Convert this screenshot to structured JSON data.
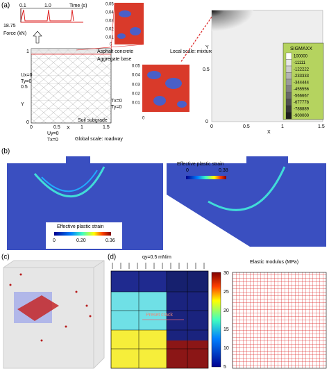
{
  "panels": {
    "a": {
      "label": "(a)",
      "time_axis": "Time (s)",
      "time_ticks": [
        "0.1",
        "1.0"
      ],
      "force_axis": "Force (kN)",
      "force_value": "18.75",
      "layers": [
        "Asphalt concrete",
        "Aggregate base",
        "Soil subgrade"
      ],
      "local_scale": "Local scale: mixture",
      "global_scale": "Global scale: roadway",
      "x_ticks": [
        "0",
        "0.5",
        "1",
        "1.5"
      ],
      "y_ticks": [
        "0",
        "0.5",
        "1"
      ],
      "x_label": "X",
      "y_label": "Y",
      "bc_left": [
        "Ux=0",
        "Ty=0"
      ],
      "bc_right": [
        "Tx=0",
        "Ty=0"
      ],
      "bc_bottom": [
        "Uy=0",
        "Tx=0"
      ],
      "inset_top_ticks": [
        "0.05",
        "0.04",
        "0.03",
        "0.02",
        "0.01",
        "0"
      ],
      "inset_ticks": [
        "0.05",
        "0.04",
        "0.03",
        "0.02",
        "0.01",
        "0"
      ],
      "contour_x_ticks": [
        "0",
        "0.5",
        "1",
        "1.5"
      ],
      "contour_y_ticks": [
        "0",
        "0.5"
      ],
      "legend_title": "SIGMAXX",
      "legend_values": [
        "100000",
        "-11111",
        "-122222",
        "-233333",
        "-344444",
        "-455556",
        "-566667",
        "-677778",
        "-788889",
        "-900000"
      ]
    },
    "b": {
      "label": "(b)",
      "left_legend": "Effective plastic strain",
      "left_ticks": [
        "0",
        "0.20",
        "0.36"
      ],
      "right_legend": "Effective plastic strain",
      "right_ticks": [
        "0",
        "0.38"
      ]
    },
    "c": {
      "label": "(c)"
    },
    "d": {
      "label": "(d)",
      "load": "qy=0.5 mN/m",
      "crack": "Preset crack",
      "colorbar_title": "Elastic modulus (MPa)",
      "colorbar_ticks": [
        "30",
        "25",
        "20",
        "15",
        "10",
        "5"
      ]
    }
  }
}
